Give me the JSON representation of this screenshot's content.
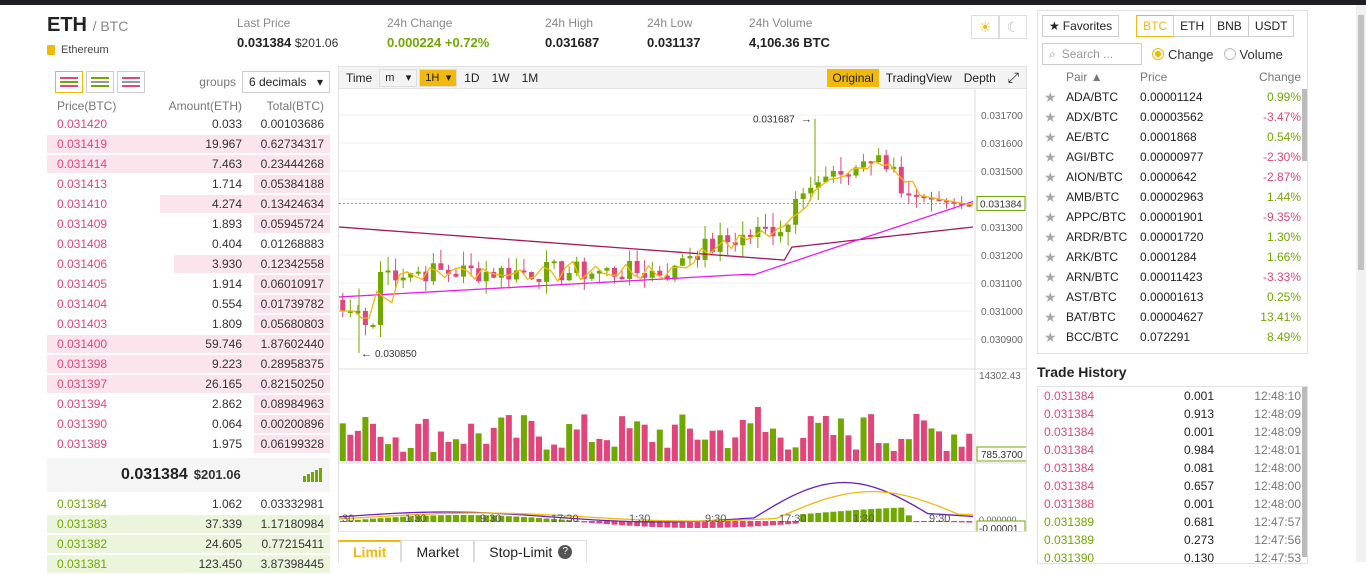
{
  "header": {
    "symbol": "ETH",
    "quote": "/ BTC",
    "name": "Ethereum",
    "last_price_label": "Last Price",
    "last_price": "0.031384",
    "last_price_usd": "$201.06",
    "change_label": "24h Change",
    "change_value": "0.000224",
    "change_pct": "+0.72%",
    "high_label": "24h High",
    "high_value": "0.031687",
    "low_label": "24h Low",
    "low_value": "0.031137",
    "volume_label": "24h Volume",
    "volume_value": "4,106.36 BTC",
    "sun_icon": "☀",
    "moon_icon": "☾"
  },
  "orderbook": {
    "groups_label": "groups",
    "groups_value": "6 decimals",
    "col_price": "Price(BTC)",
    "col_amount": "Amount(ETH)",
    "col_total": "Total(BTC)",
    "asks": [
      {
        "price": "0.031420",
        "amount": "0.033",
        "total": "0.00103686",
        "depth": 0.0
      },
      {
        "price": "0.031419",
        "amount": "19.967",
        "total": "0.62734317",
        "depth": 1.0
      },
      {
        "price": "0.031414",
        "amount": "7.463",
        "total": "0.23444268",
        "depth": 1.0
      },
      {
        "price": "0.031413",
        "amount": "1.714",
        "total": "0.05384188",
        "depth": 0.26
      },
      {
        "price": "0.031410",
        "amount": "4.274",
        "total": "0.13424634",
        "depth": 0.6
      },
      {
        "price": "0.031409",
        "amount": "1.893",
        "total": "0.05945724",
        "depth": 0.26
      },
      {
        "price": "0.031408",
        "amount": "0.404",
        "total": "0.01268883",
        "depth": 0.0
      },
      {
        "price": "0.031406",
        "amount": "3.930",
        "total": "0.12342558",
        "depth": 0.55
      },
      {
        "price": "0.031405",
        "amount": "1.914",
        "total": "0.06010917",
        "depth": 0.26
      },
      {
        "price": "0.031404",
        "amount": "0.554",
        "total": "0.01739782",
        "depth": 0.26
      },
      {
        "price": "0.031403",
        "amount": "1.809",
        "total": "0.05680803",
        "depth": 0.26
      },
      {
        "price": "0.031400",
        "amount": "59.746",
        "total": "1.87602440",
        "depth": 1.0
      },
      {
        "price": "0.031398",
        "amount": "9.223",
        "total": "0.28958375",
        "depth": 1.0
      },
      {
        "price": "0.031397",
        "amount": "26.165",
        "total": "0.82150250",
        "depth": 1.0
      },
      {
        "price": "0.031394",
        "amount": "2.862",
        "total": "0.08984963",
        "depth": 0.26
      },
      {
        "price": "0.031390",
        "amount": "0.064",
        "total": "0.00200896",
        "depth": 0.26
      },
      {
        "price": "0.031389",
        "amount": "1.975",
        "total": "0.06199328",
        "depth": 0.26
      }
    ],
    "mid_price": "0.031384",
    "mid_usd": "$201.06",
    "bids": [
      {
        "price": "0.031384",
        "amount": "1.062",
        "total": "0.03332981",
        "depth": 0.0
      },
      {
        "price": "0.031383",
        "amount": "37.339",
        "total": "1.17180984",
        "depth": 1.0
      },
      {
        "price": "0.031382",
        "amount": "24.605",
        "total": "0.77215411",
        "depth": 1.0
      },
      {
        "price": "0.031381",
        "amount": "123.450",
        "total": "3.87398445",
        "depth": 1.0
      }
    ]
  },
  "chart": {
    "toolbar": {
      "time": "Time",
      "interval": "m",
      "active": "1H",
      "d1": "1D",
      "w1": "1W",
      "m1": "1M",
      "original": "Original",
      "tradingview": "TradingView",
      "depth": "Depth",
      "expand_icon": "⤢"
    },
    "price_ticks": [
      "0.031700",
      "0.031600",
      "0.031500",
      "0.031400",
      "0.031300",
      "0.031200",
      "0.031100",
      "0.031000",
      "0.030900"
    ],
    "high_marker": "0.031687",
    "low_marker": "0.030850",
    "current_price_tag": "0.031384",
    "volume_max": "14302.43",
    "volume_tag": "785.3700",
    "macd_top": "0.000000",
    "macd_tag": "-0.00001",
    "time_ticks": [
      ":30",
      "1:30",
      "9:30",
      "17:30",
      "1:30",
      "9:30",
      "17:30",
      "1:30",
      "9:30"
    ],
    "colors": {
      "up": "#70a800",
      "down": "#e0457b",
      "ma7": "#f0b90b",
      "ma25": "#e81ee8",
      "ma99": "#a3195b"
    }
  },
  "order_tabs": {
    "limit": "Limit",
    "market": "Market",
    "stop_limit": "Stop-Limit",
    "help_icon": "?"
  },
  "markets": {
    "favorites": "Favorites",
    "star_icon": "★",
    "currencies": [
      "BTC",
      "ETH",
      "BNB",
      "USDT"
    ],
    "search_placeholder": "Search ...",
    "search_icon": "🔍",
    "change_label": "Change",
    "volume_label": "Volume",
    "col_pair": "Pair",
    "col_price": "Price",
    "col_change": "Change",
    "rows": [
      {
        "pair": "ADA/BTC",
        "price": "0.00001124",
        "change": "0.99%",
        "dir": "pos"
      },
      {
        "pair": "ADX/BTC",
        "price": "0.00003562",
        "change": "-3.47%",
        "dir": "neg"
      },
      {
        "pair": "AE/BTC",
        "price": "0.0001868",
        "change": "0.54%",
        "dir": "pos"
      },
      {
        "pair": "AGI/BTC",
        "price": "0.00000977",
        "change": "-2.30%",
        "dir": "neg"
      },
      {
        "pair": "AION/BTC",
        "price": "0.0000642",
        "change": "-2.87%",
        "dir": "neg"
      },
      {
        "pair": "AMB/BTC",
        "price": "0.00002963",
        "change": "1.44%",
        "dir": "pos"
      },
      {
        "pair": "APPC/BTC",
        "price": "0.00001901",
        "change": "-9.35%",
        "dir": "neg"
      },
      {
        "pair": "ARDR/BTC",
        "price": "0.00001720",
        "change": "1.30%",
        "dir": "pos"
      },
      {
        "pair": "ARK/BTC",
        "price": "0.0001284",
        "change": "1.66%",
        "dir": "pos"
      },
      {
        "pair": "ARN/BTC",
        "price": "0.00011423",
        "change": "-3.33%",
        "dir": "neg"
      },
      {
        "pair": "AST/BTC",
        "price": "0.00001613",
        "change": "0.25%",
        "dir": "pos"
      },
      {
        "pair": "BAT/BTC",
        "price": "0.00004627",
        "change": "13.41%",
        "dir": "pos"
      },
      {
        "pair": "BCC/BTC",
        "price": "0.072291",
        "change": "8.49%",
        "dir": "pos"
      }
    ]
  },
  "trade_history": {
    "title": "Trade History",
    "rows": [
      {
        "price": "0.031384",
        "amount": "0.001",
        "time": "12:48:10",
        "dir": "neg"
      },
      {
        "price": "0.031384",
        "amount": "0.913",
        "time": "12:48:09",
        "dir": "neg"
      },
      {
        "price": "0.031384",
        "amount": "0.001",
        "time": "12:48:09",
        "dir": "neg"
      },
      {
        "price": "0.031384",
        "amount": "0.984",
        "time": "12:48:01",
        "dir": "neg"
      },
      {
        "price": "0.031384",
        "amount": "0.081",
        "time": "12:48:00",
        "dir": "neg"
      },
      {
        "price": "0.031384",
        "amount": "0.657",
        "time": "12:48:00",
        "dir": "neg"
      },
      {
        "price": "0.031388",
        "amount": "0.001",
        "time": "12:48:00",
        "dir": "neg"
      },
      {
        "price": "0.031389",
        "amount": "0.681",
        "time": "12:47:57",
        "dir": "pos"
      },
      {
        "price": "0.031389",
        "amount": "0.273",
        "time": "12:47:56",
        "dir": "pos"
      },
      {
        "price": "0.031390",
        "amount": "0.130",
        "time": "12:47:53",
        "dir": "pos"
      }
    ]
  }
}
